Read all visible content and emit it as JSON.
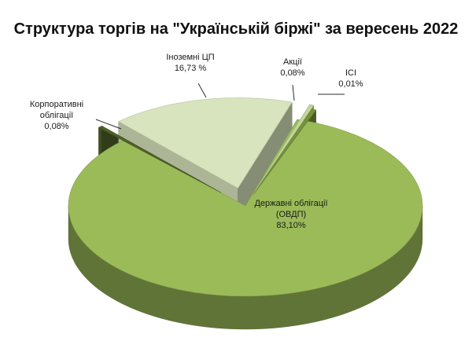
{
  "chart_data": {
    "type": "pie",
    "title": "Структура торгів на \"Українській біржі\" за вересень 2022",
    "legend": "none",
    "slices": [
      {
        "label_lines": [
          "Державні облігації",
          "(ОВДП)",
          "83,10%"
        ],
        "value": 83.1,
        "color": "#9bbb59"
      },
      {
        "label_lines": [
          "Корпоративні",
          "облігації",
          "0,08%"
        ],
        "value": 0.08,
        "color": "#4f6228"
      },
      {
        "label_lines": [
          "Іноземні ЦП",
          "16,73 %"
        ],
        "value": 16.73,
        "color": "#d7e4bd"
      },
      {
        "label_lines": [
          "Акції",
          "0,08%"
        ],
        "value": 0.08,
        "color": "#c3d69b"
      },
      {
        "label_lines": [
          "ІСІ",
          "0,01%"
        ],
        "value": 0.01,
        "color": "#76923c"
      }
    ]
  }
}
